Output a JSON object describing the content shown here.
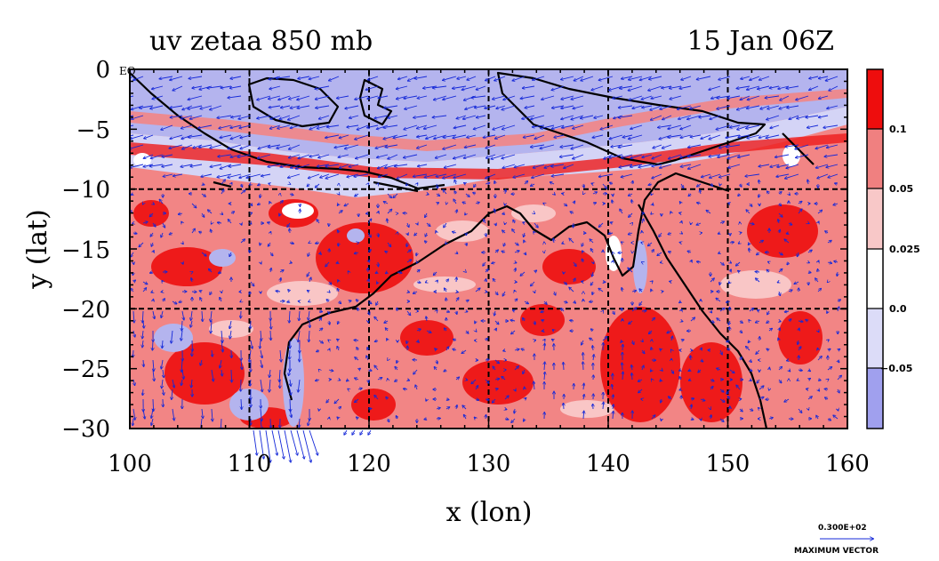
{
  "chart_data": {
    "type": "heatmap",
    "title_left": "uv zetaa 850 mb",
    "title_right": "15 Jan 06Z",
    "xlabel": "x (lon)",
    "ylabel": "y (lat)",
    "xlim": [
      100,
      160
    ],
    "ylim": [
      -30,
      0
    ],
    "x_ticks": [
      "100",
      "110",
      "120",
      "130",
      "140",
      "150",
      "160"
    ],
    "y_ticks": [
      "0",
      "−5",
      "−10",
      "−15",
      "−20",
      "−25",
      "−30"
    ],
    "grid_lon": [
      110,
      120,
      130,
      140,
      150
    ],
    "grid_lat": [
      -5,
      -10,
      -15,
      -20,
      -25
    ],
    "equator_label": "EQ",
    "colorbar": {
      "labels": [
        "0.1",
        "0.05",
        "0.025",
        "0.0",
        "−0.05"
      ],
      "colors": [
        "#ee0d0d",
        "#f08080",
        "#f8c8c8",
        "#ffffff",
        "#dcdcf8",
        "#a0a0ee"
      ]
    },
    "vector_reference": {
      "value": "0.300E+02",
      "label": "MAXIMUM VECTOR"
    },
    "colors": {
      "strong_pos": "#ee1a1a",
      "mid_pos": "#f28585",
      "weak_pos": "#f9c6c6",
      "weak_neg": "#dcdcf7",
      "strong_neg": "#a6a6ec",
      "vectors": "#1428d8",
      "coast": "#000000"
    }
  }
}
